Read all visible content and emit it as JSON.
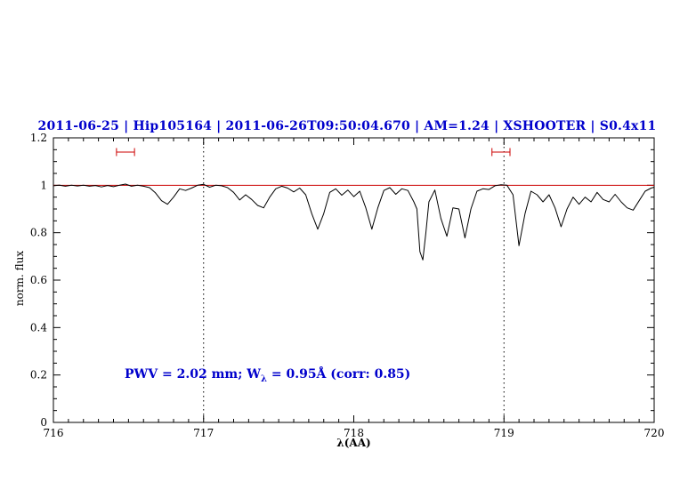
{
  "chart_data": {
    "type": "line",
    "title": "2011-06-25 | Hip105164 | 2011-06-26T09:50:04.670 | AM=1.24 | XSHOOTER | S0.4x11",
    "title_color": "#0000cc",
    "xlabel": "λ(AA)",
    "ylabel": "norm. flux",
    "xlim": [
      716,
      720
    ],
    "ylim": [
      0,
      1.2
    ],
    "x_ticks": [
      {
        "value": 716,
        "label": "716"
      },
      {
        "value": 717,
        "label": "717"
      },
      {
        "value": 718,
        "label": "718"
      },
      {
        "value": 719,
        "label": "719"
      },
      {
        "value": 720,
        "label": "720"
      }
    ],
    "y_ticks": [
      {
        "value": 0,
        "label": "0"
      },
      {
        "value": 0.2,
        "label": "0.2"
      },
      {
        "value": 0.4,
        "label": "0.4"
      },
      {
        "value": 0.6,
        "label": "0.6"
      },
      {
        "value": 0.8,
        "label": "0.8"
      },
      {
        "value": 1,
        "label": "1"
      },
      {
        "value": 1.2,
        "label": "1.2"
      }
    ],
    "x_minor_step": 0.1,
    "y_minor_step": 0.05,
    "grid": "off",
    "legend": "none",
    "dotted_vlines": [
      717,
      719
    ],
    "continuum": {
      "y": 1.0,
      "color": "#cc0000"
    },
    "range_markers": [
      {
        "x": 716.48,
        "y": 1.14,
        "half_width": 0.06
      },
      {
        "x": 718.98,
        "y": 1.14,
        "half_width": 0.06
      }
    ],
    "marker_color": "#cc0000",
    "annotation": {
      "pre": "PWV = 2.02 mm; W",
      "sub": "λ",
      "post": " = 0.95Å (corr: 0.85)",
      "color": "#0000cc"
    },
    "measurements": {
      "pwv_mm": 2.02,
      "w_lambda_A": 0.95,
      "corr": 0.85
    },
    "series": [
      {
        "name": "spectrum",
        "color": "#000000",
        "points": [
          [
            716.0,
            0.998
          ],
          [
            716.04,
            1.0
          ],
          [
            716.08,
            0.996
          ],
          [
            716.12,
            1.0
          ],
          [
            716.16,
            0.997
          ],
          [
            716.2,
            1.0
          ],
          [
            716.24,
            0.996
          ],
          [
            716.28,
            0.999
          ],
          [
            716.32,
            0.993
          ],
          [
            716.36,
            0.999
          ],
          [
            716.4,
            0.994
          ],
          [
            716.44,
            1.0
          ],
          [
            716.48,
            1.005
          ],
          [
            716.52,
            0.996
          ],
          [
            716.56,
            1.0
          ],
          [
            716.6,
            0.996
          ],
          [
            716.64,
            0.99
          ],
          [
            716.68,
            0.968
          ],
          [
            716.72,
            0.935
          ],
          [
            716.76,
            0.92
          ],
          [
            716.8,
            0.95
          ],
          [
            716.84,
            0.985
          ],
          [
            716.88,
            0.978
          ],
          [
            716.92,
            0.988
          ],
          [
            716.96,
            1.0
          ],
          [
            717.0,
            1.004
          ],
          [
            717.04,
            0.992
          ],
          [
            717.08,
            1.0
          ],
          [
            717.12,
            0.998
          ],
          [
            717.16,
            0.99
          ],
          [
            717.2,
            0.97
          ],
          [
            717.24,
            0.938
          ],
          [
            717.28,
            0.96
          ],
          [
            717.32,
            0.94
          ],
          [
            717.36,
            0.915
          ],
          [
            717.4,
            0.905
          ],
          [
            717.44,
            0.95
          ],
          [
            717.48,
            0.985
          ],
          [
            717.52,
            0.996
          ],
          [
            717.56,
            0.988
          ],
          [
            717.6,
            0.972
          ],
          [
            717.64,
            0.988
          ],
          [
            717.68,
            0.96
          ],
          [
            717.72,
            0.88
          ],
          [
            717.76,
            0.815
          ],
          [
            717.8,
            0.88
          ],
          [
            717.84,
            0.97
          ],
          [
            717.88,
            0.985
          ],
          [
            717.92,
            0.958
          ],
          [
            717.96,
            0.98
          ],
          [
            718.0,
            0.952
          ],
          [
            718.04,
            0.975
          ],
          [
            718.08,
            0.905
          ],
          [
            718.12,
            0.815
          ],
          [
            718.16,
            0.905
          ],
          [
            718.2,
            0.978
          ],
          [
            718.24,
            0.99
          ],
          [
            718.28,
            0.962
          ],
          [
            718.32,
            0.985
          ],
          [
            718.36,
            0.978
          ],
          [
            718.4,
            0.93
          ],
          [
            718.42,
            0.9
          ],
          [
            718.44,
            0.72
          ],
          [
            718.46,
            0.685
          ],
          [
            718.48,
            0.8
          ],
          [
            718.5,
            0.93
          ],
          [
            718.54,
            0.98
          ],
          [
            718.58,
            0.86
          ],
          [
            718.62,
            0.785
          ],
          [
            718.66,
            0.905
          ],
          [
            718.7,
            0.9
          ],
          [
            718.74,
            0.778
          ],
          [
            718.78,
            0.9
          ],
          [
            718.82,
            0.975
          ],
          [
            718.86,
            0.985
          ],
          [
            718.9,
            0.982
          ],
          [
            718.94,
            0.998
          ],
          [
            718.98,
            1.002
          ],
          [
            719.02,
            1.0
          ],
          [
            719.06,
            0.96
          ],
          [
            719.1,
            0.745
          ],
          [
            719.14,
            0.88
          ],
          [
            719.18,
            0.975
          ],
          [
            719.22,
            0.96
          ],
          [
            719.26,
            0.93
          ],
          [
            719.3,
            0.96
          ],
          [
            719.34,
            0.905
          ],
          [
            719.38,
            0.825
          ],
          [
            719.42,
            0.9
          ],
          [
            719.46,
            0.95
          ],
          [
            719.5,
            0.92
          ],
          [
            719.54,
            0.95
          ],
          [
            719.58,
            0.93
          ],
          [
            719.62,
            0.97
          ],
          [
            719.66,
            0.94
          ],
          [
            719.7,
            0.93
          ],
          [
            719.74,
            0.962
          ],
          [
            719.78,
            0.93
          ],
          [
            719.82,
            0.905
          ],
          [
            719.86,
            0.895
          ],
          [
            719.9,
            0.935
          ],
          [
            719.94,
            0.975
          ],
          [
            719.98,
            0.988
          ],
          [
            720.0,
            0.992
          ]
        ]
      }
    ]
  }
}
